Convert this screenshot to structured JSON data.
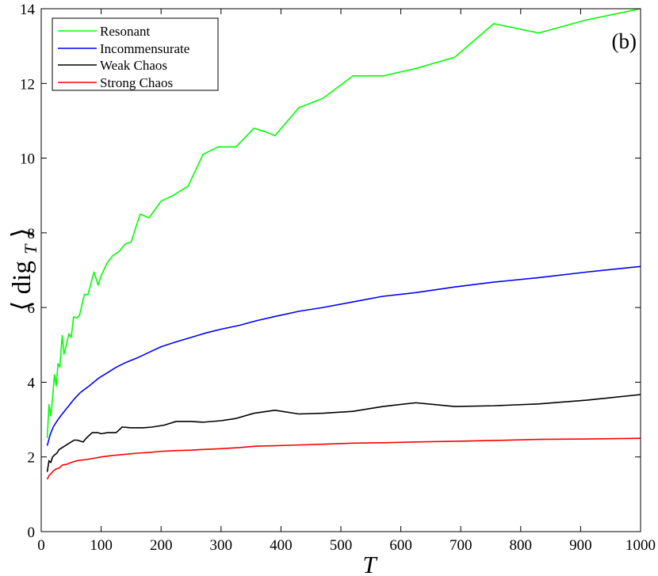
{
  "chart_data": {
    "type": "line",
    "panel_label": "(b)",
    "xlabel": "T",
    "ylabel": {
      "open": "⟨",
      "main": "dig",
      "subscript": "T",
      "close": "⟩"
    },
    "xlim": [
      0,
      1000
    ],
    "ylim": [
      0,
      14
    ],
    "xticks": [
      0,
      100,
      200,
      300,
      400,
      500,
      600,
      700,
      800,
      900,
      1000
    ],
    "yticks": [
      0,
      2,
      4,
      6,
      8,
      10,
      12,
      14
    ],
    "grid": false,
    "legend_position": "top-left",
    "series": [
      {
        "name": "Resonant",
        "color": "#00ff00",
        "points": [
          [
            10,
            2.5
          ],
          [
            13,
            3.4
          ],
          [
            16,
            3.1
          ],
          [
            19,
            3.6
          ],
          [
            22,
            4.2
          ],
          [
            25,
            3.9
          ],
          [
            28,
            4.5
          ],
          [
            31,
            4.4
          ],
          [
            35,
            5.25
          ],
          [
            38,
            4.75
          ],
          [
            42,
            5.0
          ],
          [
            46,
            5.3
          ],
          [
            50,
            5.2
          ],
          [
            54,
            5.75
          ],
          [
            60,
            5.72
          ],
          [
            64,
            5.8
          ],
          [
            72,
            6.35
          ],
          [
            78,
            6.35
          ],
          [
            88,
            6.95
          ],
          [
            95,
            6.6
          ],
          [
            100,
            6.85
          ],
          [
            110,
            7.2
          ],
          [
            120,
            7.4
          ],
          [
            130,
            7.5
          ],
          [
            140,
            7.7
          ],
          [
            150,
            7.75
          ],
          [
            165,
            8.5
          ],
          [
            180,
            8.4
          ],
          [
            200,
            8.85
          ],
          [
            220,
            9.0
          ],
          [
            245,
            9.25
          ],
          [
            270,
            10.1
          ],
          [
            295,
            10.3
          ],
          [
            325,
            10.3
          ],
          [
            355,
            10.8
          ],
          [
            375,
            10.7
          ],
          [
            390,
            10.6
          ],
          [
            430,
            11.35
          ],
          [
            470,
            11.6
          ],
          [
            520,
            12.2
          ],
          [
            570,
            12.2
          ],
          [
            625,
            12.4
          ],
          [
            690,
            12.7
          ],
          [
            755,
            13.6
          ],
          [
            830,
            13.35
          ],
          [
            910,
            13.7
          ],
          [
            1000,
            14.0
          ]
        ]
      },
      {
        "name": "Incommensurate",
        "color": "#0000ff",
        "points": [
          [
            10,
            2.3
          ],
          [
            15,
            2.6
          ],
          [
            20,
            2.8
          ],
          [
            28,
            3.0
          ],
          [
            35,
            3.15
          ],
          [
            45,
            3.35
          ],
          [
            55,
            3.55
          ],
          [
            65,
            3.72
          ],
          [
            80,
            3.9
          ],
          [
            95,
            4.1
          ],
          [
            110,
            4.25
          ],
          [
            125,
            4.4
          ],
          [
            140,
            4.52
          ],
          [
            160,
            4.65
          ],
          [
            180,
            4.8
          ],
          [
            200,
            4.95
          ],
          [
            225,
            5.08
          ],
          [
            250,
            5.2
          ],
          [
            275,
            5.32
          ],
          [
            300,
            5.42
          ],
          [
            330,
            5.52
          ],
          [
            360,
            5.65
          ],
          [
            390,
            5.76
          ],
          [
            430,
            5.9
          ],
          [
            470,
            6.0
          ],
          [
            520,
            6.15
          ],
          [
            570,
            6.3
          ],
          [
            625,
            6.4
          ],
          [
            690,
            6.55
          ],
          [
            755,
            6.68
          ],
          [
            830,
            6.8
          ],
          [
            910,
            6.95
          ],
          [
            1000,
            7.1
          ]
        ]
      },
      {
        "name": "Weak Chaos",
        "color": "#000000",
        "points": [
          [
            10,
            1.6
          ],
          [
            13,
            1.9
          ],
          [
            16,
            1.85
          ],
          [
            19,
            2.0
          ],
          [
            22,
            2.05
          ],
          [
            26,
            2.1
          ],
          [
            30,
            2.2
          ],
          [
            35,
            2.25
          ],
          [
            40,
            2.3
          ],
          [
            45,
            2.35
          ],
          [
            50,
            2.4
          ],
          [
            55,
            2.45
          ],
          [
            60,
            2.45
          ],
          [
            70,
            2.4
          ],
          [
            75,
            2.5
          ],
          [
            85,
            2.65
          ],
          [
            95,
            2.65
          ],
          [
            100,
            2.62
          ],
          [
            110,
            2.65
          ],
          [
            125,
            2.65
          ],
          [
            135,
            2.8
          ],
          [
            150,
            2.78
          ],
          [
            170,
            2.78
          ],
          [
            185,
            2.8
          ],
          [
            205,
            2.85
          ],
          [
            225,
            2.95
          ],
          [
            250,
            2.95
          ],
          [
            270,
            2.93
          ],
          [
            300,
            2.97
          ],
          [
            325,
            3.03
          ],
          [
            355,
            3.17
          ],
          [
            390,
            3.25
          ],
          [
            430,
            3.15
          ],
          [
            470,
            3.17
          ],
          [
            520,
            3.22
          ],
          [
            570,
            3.35
          ],
          [
            625,
            3.45
          ],
          [
            690,
            3.35
          ],
          [
            755,
            3.37
          ],
          [
            830,
            3.42
          ],
          [
            910,
            3.52
          ],
          [
            1000,
            3.67
          ]
        ]
      },
      {
        "name": "Strong Chaos",
        "color": "#ff0000",
        "points": [
          [
            10,
            1.4
          ],
          [
            13,
            1.5
          ],
          [
            16,
            1.55
          ],
          [
            20,
            1.62
          ],
          [
            25,
            1.68
          ],
          [
            30,
            1.7
          ],
          [
            35,
            1.78
          ],
          [
            42,
            1.8
          ],
          [
            50,
            1.85
          ],
          [
            60,
            1.9
          ],
          [
            75,
            1.93
          ],
          [
            90,
            1.97
          ],
          [
            100,
            2.0
          ],
          [
            120,
            2.04
          ],
          [
            140,
            2.07
          ],
          [
            160,
            2.1
          ],
          [
            180,
            2.12
          ],
          [
            200,
            2.15
          ],
          [
            225,
            2.17
          ],
          [
            250,
            2.18
          ],
          [
            270,
            2.2
          ],
          [
            300,
            2.22
          ],
          [
            330,
            2.25
          ],
          [
            360,
            2.29
          ],
          [
            390,
            2.3
          ],
          [
            430,
            2.32
          ],
          [
            470,
            2.34
          ],
          [
            520,
            2.37
          ],
          [
            570,
            2.38
          ],
          [
            625,
            2.4
          ],
          [
            690,
            2.42
          ],
          [
            755,
            2.44
          ],
          [
            830,
            2.47
          ],
          [
            910,
            2.48
          ],
          [
            1000,
            2.5
          ]
        ]
      }
    ]
  }
}
